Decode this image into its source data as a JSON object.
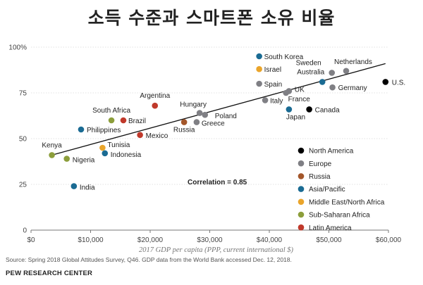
{
  "title": "소득 수준과 스마트폰 소유 비율",
  "source": "Source: Spring 2018 Global Attitudes Survey, Q46. GDP data from the World Bank accessed Dec. 12, 2018.",
  "organization": "PEW RESEARCH CENTER",
  "correlation_label": "Correlation = 0.85",
  "colors": {
    "North America": "#000000",
    "Europe": "#7f7f84",
    "Russia": "#a3562a",
    "Asia/Pacific": "#1a6b93",
    "Middle East/North Africa": "#eaa52b",
    "Sub-Saharan Africa": "#8c9e3b",
    "Latin America": "#c0392b"
  },
  "chart_data": {
    "type": "scatter",
    "title": "소득 수준과 스마트폰 소유 비율",
    "xlabel": "2017 GDP per capita (PPP, current international $)",
    "ylabel": "",
    "xlim": [
      0,
      60000
    ],
    "ylim": [
      0,
      100
    ],
    "x_ticks": [
      "$0",
      "$10,000",
      "$20,000",
      "$30,000",
      "$40,000",
      "$50,000",
      "$60,000"
    ],
    "y_ticks": [
      "0",
      "25",
      "50",
      "75",
      "100%"
    ],
    "legend": [
      "North America",
      "Europe",
      "Russia",
      "Asia/Pacific",
      "Middle East/North Africa",
      "Sub-Saharan Africa",
      "Latin America"
    ],
    "legend_position": "bottom-right",
    "trendline": {
      "x": [
        3500,
        59500
      ],
      "y": [
        41,
        91
      ]
    },
    "points": [
      {
        "label": "South Korea",
        "region": "Asia/Pacific",
        "x": 38300,
        "y": 95
      },
      {
        "label": "Israel",
        "region": "Middle East/North Africa",
        "x": 38300,
        "y": 88
      },
      {
        "label": "Netherlands",
        "region": "Europe",
        "x": 52900,
        "y": 87
      },
      {
        "label": "Sweden",
        "region": "Europe",
        "x": 50500,
        "y": 86
      },
      {
        "label": "Australia",
        "region": "Asia/Pacific",
        "x": 48900,
        "y": 81
      },
      {
        "label": "U.S.",
        "region": "North America",
        "x": 59500,
        "y": 81
      },
      {
        "label": "Spain",
        "region": "Europe",
        "x": 38300,
        "y": 80
      },
      {
        "label": "Germany",
        "region": "Europe",
        "x": 50600,
        "y": 78
      },
      {
        "label": "UK",
        "region": "Europe",
        "x": 43300,
        "y": 76
      },
      {
        "label": "France",
        "region": "Europe",
        "x": 42800,
        "y": 75
      },
      {
        "label": "Italy",
        "region": "Europe",
        "x": 39300,
        "y": 71
      },
      {
        "label": "Canada",
        "region": "North America",
        "x": 46700,
        "y": 66
      },
      {
        "label": "Japan",
        "region": "Asia/Pacific",
        "x": 43300,
        "y": 66
      },
      {
        "label": "Argentina",
        "region": "Latin America",
        "x": 20800,
        "y": 68
      },
      {
        "label": "Hungary",
        "region": "Europe",
        "x": 28300,
        "y": 64
      },
      {
        "label": "Poland",
        "region": "Europe",
        "x": 29200,
        "y": 63
      },
      {
        "label": "Greece",
        "region": "Europe",
        "x": 27800,
        "y": 59
      },
      {
        "label": "Russia",
        "region": "Russia",
        "x": 25700,
        "y": 59
      },
      {
        "label": "South Africa",
        "region": "Sub-Saharan Africa",
        "x": 13500,
        "y": 60
      },
      {
        "label": "Brazil",
        "region": "Latin America",
        "x": 15500,
        "y": 60
      },
      {
        "label": "Philippines",
        "region": "Asia/Pacific",
        "x": 8400,
        "y": 55
      },
      {
        "label": "Mexico",
        "region": "Latin America",
        "x": 18300,
        "y": 52
      },
      {
        "label": "Tunisia",
        "region": "Middle East/North Africa",
        "x": 12000,
        "y": 45
      },
      {
        "label": "Indonesia",
        "region": "Asia/Pacific",
        "x": 12400,
        "y": 42
      },
      {
        "label": "Kenya",
        "region": "Sub-Saharan Africa",
        "x": 3500,
        "y": 41
      },
      {
        "label": "Nigeria",
        "region": "Sub-Saharan Africa",
        "x": 6000,
        "y": 39
      },
      {
        "label": "India",
        "region": "Asia/Pacific",
        "x": 7200,
        "y": 24
      }
    ]
  }
}
